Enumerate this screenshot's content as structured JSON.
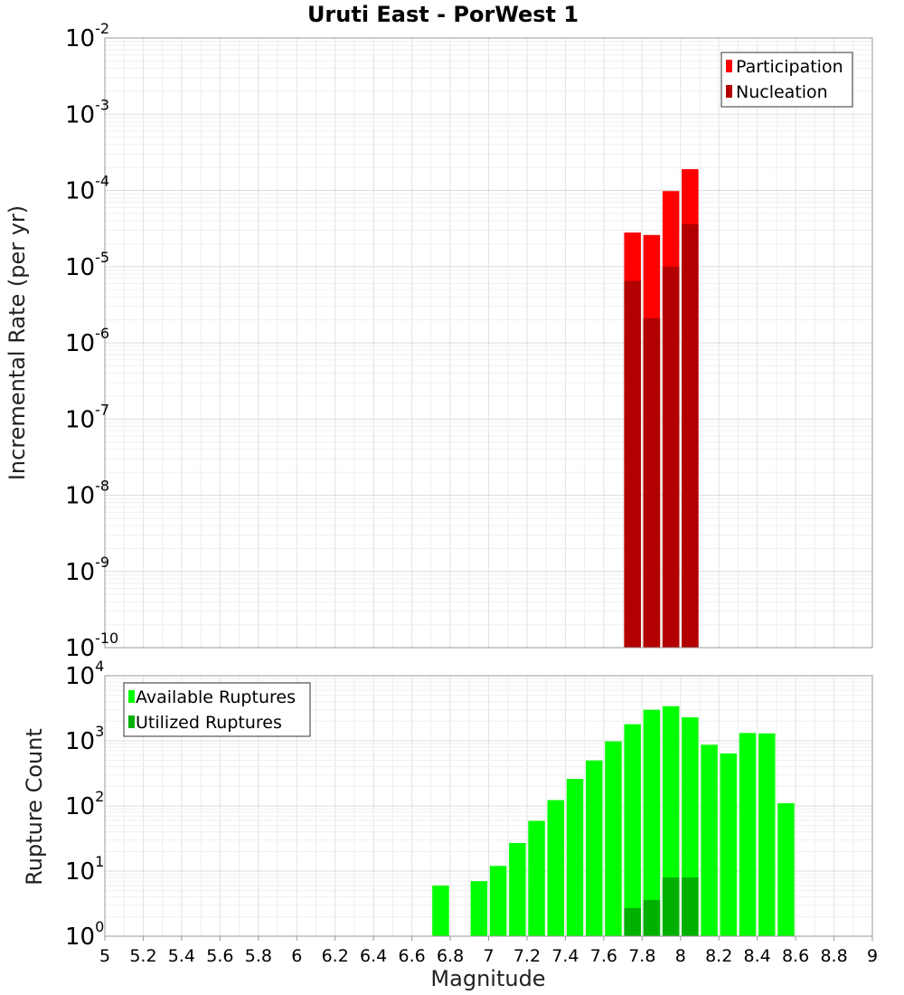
{
  "chart_data": [
    {
      "type": "bar",
      "title": "Uruti East - PorWest 1",
      "xlabel": "",
      "ylabel": "Incremental Rate (per yr)",
      "y_scale": "log",
      "ylim_exp": [
        -10,
        -2
      ],
      "xlim": [
        5,
        9
      ],
      "grid": true,
      "legend_position": "top-right",
      "series": [
        {
          "name": "Participation",
          "color": "#ff0000",
          "x": [
            7.75,
            7.85,
            7.95,
            8.05
          ],
          "values": [
            2.8e-05,
            2.6e-05,
            9.8e-05,
            0.00019
          ]
        },
        {
          "name": "Nucleation",
          "color": "#b20000",
          "x": [
            7.75,
            7.85,
            7.95,
            8.05
          ],
          "values": [
            6.5e-06,
            2.1e-06,
            1e-05,
            3.6e-05
          ]
        }
      ]
    },
    {
      "type": "bar",
      "title": "",
      "xlabel": "Magnitude",
      "ylabel": "Rupture Count",
      "y_scale": "log",
      "ylim_exp": [
        0,
        4
      ],
      "xlim": [
        5,
        9
      ],
      "xticks": [
        "5",
        "5.2",
        "5.4",
        "5.6",
        "5.8",
        "6",
        "6.2",
        "6.4",
        "6.6",
        "6.8",
        "7",
        "7.2",
        "7.4",
        "7.6",
        "7.8",
        "8",
        "8.2",
        "8.4",
        "8.6",
        "8.8",
        "9"
      ],
      "grid": true,
      "legend_position": "top-left",
      "series": [
        {
          "name": "Available Ruptures",
          "color": "#00ff00",
          "x": [
            6.75,
            6.85,
            6.95,
            7.05,
            7.15,
            7.25,
            7.35,
            7.45,
            7.55,
            7.65,
            7.75,
            7.85,
            7.95,
            8.05,
            8.15,
            8.25,
            8.35,
            8.45,
            8.55
          ],
          "values": [
            6,
            1,
            7,
            12,
            27,
            59,
            123,
            260,
            500,
            980,
            1800,
            3000,
            3400,
            2300,
            870,
            640,
            1320,
            1300,
            110
          ]
        },
        {
          "name": "Utilized Ruptures",
          "color": "#00b000",
          "x": [
            7.75,
            7.85,
            7.95,
            8.05
          ],
          "values": [
            2.7,
            3.6,
            8,
            8
          ]
        }
      ]
    }
  ]
}
